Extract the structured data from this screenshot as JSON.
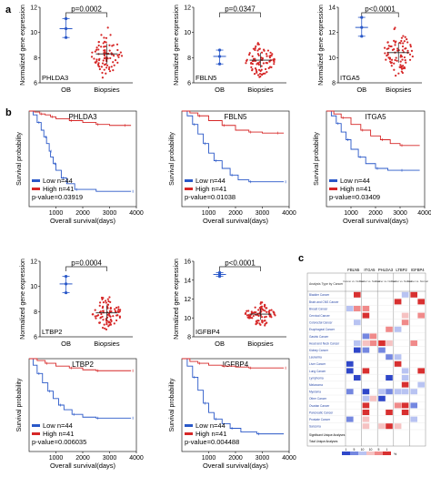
{
  "panel_labels": {
    "a": "a",
    "b": "b",
    "c": "c"
  },
  "scatter_ylabel": "Normalized gene expression",
  "km_ylabel": "Survival probability",
  "km_xlabel": "Overall survival(days)",
  "legend": {
    "low": "Low  n=44",
    "high": "High n=41"
  },
  "colors": {
    "low": "#2a58c8",
    "high": "#d62727",
    "ob": "#2a58c8",
    "bio": "#d62727"
  },
  "oncomine": {
    "header_title": "Analysis Type by Cancer",
    "genes": [
      "FBLN5",
      "ITGA5",
      "PHLDA3",
      "LTBP2",
      "IGFBP4"
    ],
    "sub_header": "Cancer vs. Normal",
    "cancers": [
      "Bladder Cancer",
      "Brain and CNS Cancer",
      "Breast Cancer",
      "Cervical Cancer",
      "Colorectal Cancer",
      "Esophageal Cancer",
      "Gastric Cancer",
      "Head and Neck Cancer",
      "Kidney Cancer",
      "Leukemia",
      "Liver Cancer",
      "Lung Cancer",
      "Lymphoma",
      "Melanoma",
      "Myeloma",
      "Other Cancer",
      "Ovarian Cancer",
      "Pancreatic Cancer",
      "Prostate Cancer",
      "Sarcoma"
    ],
    "sig_label": "Significant Unique Analyses",
    "total_label": "Total Unique Analyses",
    "legend_ticks": [
      "1",
      "5",
      "10",
      "10",
      "5",
      "1"
    ],
    "legend_title": "%"
  },
  "chart_data": [
    {
      "type": "scatter",
      "title": "",
      "gene": "PHLDA3",
      "categories": [
        "OB",
        "Biopsies"
      ],
      "pvalue": "p=0.0002",
      "ylim": [
        6,
        12
      ],
      "yticks": [
        "6",
        "8",
        "10",
        "12"
      ],
      "ob_mean": 10.3,
      "ob_range": [
        9.6,
        11.1
      ],
      "bio_mean": 8.3,
      "bio_sd": 0.8
    },
    {
      "type": "scatter",
      "title": "",
      "gene": "FBLN5",
      "categories": [
        "OB",
        "Biopsies"
      ],
      "pvalue": "p=0.0347",
      "ylim": [
        6,
        12
      ],
      "yticks": [
        "6",
        "8",
        "10",
        "12"
      ],
      "ob_mean": 8.1,
      "ob_range": [
        7.5,
        8.6
      ],
      "bio_mean": 7.8,
      "bio_sd": 0.6
    },
    {
      "type": "scatter",
      "title": "",
      "gene": "ITGA5",
      "categories": [
        "OB",
        "Biopsies"
      ],
      "pvalue": "p<0.0001",
      "ylim": [
        8,
        14
      ],
      "yticks": [
        "8",
        "10",
        "12",
        "14"
      ],
      "ob_mean": 12.4,
      "ob_range": [
        11.7,
        13.2
      ],
      "bio_mean": 10.4,
      "bio_sd": 0.8
    },
    {
      "type": "scatter",
      "title": "",
      "gene": "LTBP2",
      "categories": [
        "OB",
        "Biopsies"
      ],
      "pvalue": "p=0.0004",
      "ylim": [
        6,
        12
      ],
      "yticks": [
        "6",
        "8",
        "10",
        "12"
      ],
      "ob_mean": 10.2,
      "ob_range": [
        9.5,
        10.8
      ],
      "bio_mean": 7.9,
      "bio_sd": 0.6
    },
    {
      "type": "scatter",
      "title": "",
      "gene": "IGFBP4",
      "categories": [
        "OB",
        "Biopsies"
      ],
      "pvalue": "p<0.0001",
      "ylim": [
        8,
        16
      ],
      "yticks": [
        "8",
        "10",
        "12",
        "14",
        "16"
      ],
      "ob_mean": 14.6,
      "ob_range": [
        14.4,
        14.8
      ],
      "bio_mean": 10.4,
      "bio_sd": 0.6
    },
    {
      "type": "line",
      "title": "PHLDA3",
      "pvalue": "p-value=0.03919",
      "xlim": [
        0,
        4000
      ],
      "ylim": [
        0,
        1
      ],
      "xticks": [
        "1000",
        "2000",
        "3000",
        "4000"
      ],
      "series": [
        {
          "name": "Low",
          "x": [
            0,
            150,
            300,
            450,
            550,
            650,
            750,
            800,
            900,
            1000,
            1200,
            1400,
            1700,
            2500,
            3800
          ],
          "y": [
            1,
            0.96,
            0.88,
            0.8,
            0.73,
            0.66,
            0.58,
            0.52,
            0.45,
            0.38,
            0.3,
            0.24,
            0.18,
            0.16,
            0.16
          ]
        },
        {
          "name": "High",
          "x": [
            0,
            200,
            400,
            600,
            800,
            1000,
            1500,
            2000,
            2500,
            3000,
            3500,
            3800
          ],
          "y": [
            1,
            0.99,
            0.97,
            0.96,
            0.94,
            0.92,
            0.9,
            0.88,
            0.86,
            0.85,
            0.85,
            0.85
          ]
        }
      ]
    },
    {
      "type": "line",
      "title": "FBLN5",
      "pvalue": "p-value=0.01038",
      "xlim": [
        0,
        4000
      ],
      "ylim": [
        0,
        1
      ],
      "xticks": [
        "1000",
        "2000",
        "3000",
        "4000"
      ],
      "series": [
        {
          "name": "Low",
          "x": [
            0,
            200,
            400,
            600,
            800,
            1000,
            1200,
            1500,
            1800,
            2100,
            2500,
            3000,
            3800
          ],
          "y": [
            1,
            0.95,
            0.86,
            0.76,
            0.66,
            0.56,
            0.48,
            0.4,
            0.33,
            0.28,
            0.26,
            0.26,
            0.26
          ]
        },
        {
          "name": "High",
          "x": [
            0,
            300,
            600,
            1000,
            1500,
            2000,
            2500,
            3000,
            3500,
            3800
          ],
          "y": [
            1,
            0.98,
            0.95,
            0.9,
            0.85,
            0.8,
            0.78,
            0.77,
            0.77,
            0.77
          ]
        }
      ]
    },
    {
      "type": "line",
      "title": "ITGA5",
      "pvalue": "p-value=0.03409",
      "xlim": [
        0,
        4000
      ],
      "ylim": [
        0,
        1
      ],
      "xticks": [
        "1000",
        "2000",
        "3000",
        "4000"
      ],
      "series": [
        {
          "name": "Low",
          "x": [
            0,
            200,
            400,
            600,
            800,
            1000,
            1300,
            1600,
            2000,
            2500,
            3000,
            3800
          ],
          "y": [
            1,
            0.95,
            0.87,
            0.78,
            0.7,
            0.6,
            0.52,
            0.45,
            0.4,
            0.38,
            0.38,
            0.38
          ]
        },
        {
          "name": "High",
          "x": [
            0,
            300,
            600,
            1000,
            1400,
            1800,
            2200,
            2600,
            3000,
            3800
          ],
          "y": [
            1,
            0.97,
            0.93,
            0.86,
            0.8,
            0.74,
            0.7,
            0.66,
            0.64,
            0.64
          ]
        }
      ]
    },
    {
      "type": "line",
      "title": "LTBP2",
      "pvalue": "p-value=0.006035",
      "xlim": [
        0,
        4000
      ],
      "ylim": [
        0,
        1
      ],
      "xticks": [
        "1000",
        "2000",
        "3000",
        "4000"
      ],
      "series": [
        {
          "name": "Low",
          "x": [
            0,
            150,
            300,
            500,
            700,
            900,
            1100,
            1300,
            1600,
            2000,
            2500,
            3000,
            3800
          ],
          "y": [
            1,
            0.93,
            0.84,
            0.74,
            0.65,
            0.57,
            0.5,
            0.45,
            0.4,
            0.37,
            0.36,
            0.36,
            0.36
          ]
        },
        {
          "name": "High",
          "x": [
            0,
            300,
            600,
            1000,
            1500,
            2000,
            2500,
            3000,
            3800
          ],
          "y": [
            1,
            0.98,
            0.95,
            0.92,
            0.9,
            0.88,
            0.87,
            0.87,
            0.87
          ]
        }
      ]
    },
    {
      "type": "line",
      "title": "IGFBP4",
      "pvalue": "p-value=0.004488",
      "xlim": [
        0,
        4000
      ],
      "ylim": [
        0,
        1
      ],
      "xticks": [
        "1000",
        "2000",
        "3000",
        "4000"
      ],
      "series": [
        {
          "name": "Low",
          "x": [
            0,
            200,
            400,
            600,
            800,
            1000,
            1200,
            1500,
            1800,
            2200,
            2800,
            3800
          ],
          "y": [
            1,
            0.92,
            0.8,
            0.66,
            0.52,
            0.42,
            0.35,
            0.3,
            0.25,
            0.21,
            0.19,
            0.19
          ]
        },
        {
          "name": "High",
          "x": [
            0,
            300,
            600,
            1000,
            1500,
            2000,
            2500,
            3000,
            3800
          ],
          "y": [
            1,
            0.97,
            0.95,
            0.93,
            0.92,
            0.91,
            0.9,
            0.9,
            0.9
          ]
        }
      ]
    }
  ]
}
